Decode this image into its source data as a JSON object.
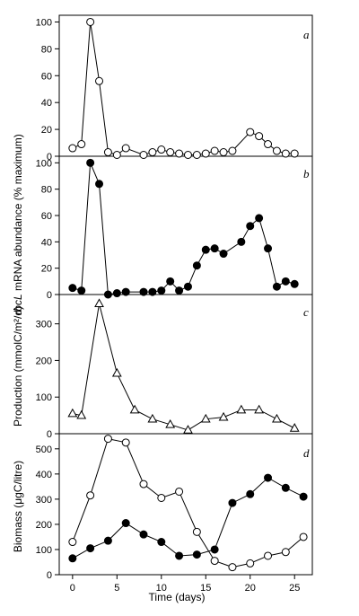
{
  "chart_data": [
    {
      "panel": "a",
      "type": "line",
      "marker": "circle-open",
      "x": [
        0,
        1,
        2,
        3,
        4,
        5,
        6,
        8,
        9,
        10,
        11,
        12,
        13,
        14,
        15,
        16,
        17,
        18,
        20,
        21,
        22,
        23,
        24,
        25
      ],
      "y": [
        6,
        9,
        100,
        56,
        3,
        1,
        6,
        1,
        3,
        5,
        3,
        2,
        1,
        1,
        2,
        4,
        3,
        4,
        18,
        15,
        9,
        4,
        2,
        2
      ],
      "ylim": [
        0,
        105
      ],
      "yticks": [
        "0",
        "20",
        "40",
        "60",
        "80",
        "100"
      ]
    },
    {
      "panel": "b",
      "type": "line",
      "marker": "circle-filled",
      "x": [
        0,
        1,
        2,
        3,
        4,
        5,
        6,
        8,
        9,
        10,
        11,
        12,
        13,
        14,
        15,
        16,
        17,
        19,
        20,
        21,
        22,
        23,
        24,
        25
      ],
      "y": [
        5,
        3,
        100,
        84,
        0,
        1,
        2,
        2,
        2,
        3,
        10,
        3,
        6,
        22,
        34,
        35,
        31,
        40,
        52,
        58,
        35,
        6,
        10,
        8
      ],
      "ylim": [
        0,
        105
      ],
      "yticks": [
        "0",
        "20",
        "40",
        "60",
        "80",
        "100"
      ]
    },
    {
      "panel": "c",
      "type": "line",
      "marker": "triangle-open",
      "x": [
        0,
        1,
        3,
        5,
        7,
        9,
        11,
        13,
        15,
        17,
        19,
        21,
        23,
        25
      ],
      "y": [
        55,
        50,
        355,
        165,
        65,
        40,
        25,
        10,
        40,
        45,
        65,
        65,
        40,
        15
      ],
      "ylim": [
        0,
        380
      ],
      "yticks": [
        "0",
        "100",
        "200",
        "300"
      ]
    },
    {
      "panel": "d",
      "type": "line",
      "series": [
        {
          "marker": "circle-open",
          "x": [
            0,
            2,
            4,
            6,
            8,
            10,
            12,
            14,
            16,
            18,
            20,
            22,
            24,
            26
          ],
          "y": [
            130,
            315,
            540,
            525,
            360,
            305,
            330,
            170,
            55,
            30,
            45,
            75,
            90,
            150
          ]
        },
        {
          "marker": "circle-filled",
          "x": [
            0,
            2,
            4,
            6,
            8,
            10,
            12,
            14,
            16,
            18,
            20,
            22,
            24,
            26
          ],
          "y": [
            65,
            105,
            135,
            205,
            160,
            130,
            75,
            80,
            100,
            285,
            320,
            385,
            345,
            310
          ]
        }
      ],
      "ylim": [
        0,
        560
      ],
      "yticks": [
        "0",
        "100",
        "200",
        "300",
        "400",
        "500"
      ]
    }
  ],
  "panel_letters": [
    "a",
    "b",
    "c",
    "d"
  ],
  "xaxis": {
    "label": "Time (days)",
    "xlim": [
      -1.5,
      27
    ],
    "ticks": [
      "0",
      "5",
      "10",
      "15",
      "20",
      "25"
    ]
  },
  "ylabels": {
    "ab_italic": "rbcL",
    "ab_rest": " mRNA abundance (% maximum)",
    "c": "Production (mmolC/m²/d)",
    "d": "Biomass (μgC/litre)"
  },
  "colors": {
    "axis": "#000000",
    "open_fill": "#ffffff",
    "filled": "#000000"
  }
}
